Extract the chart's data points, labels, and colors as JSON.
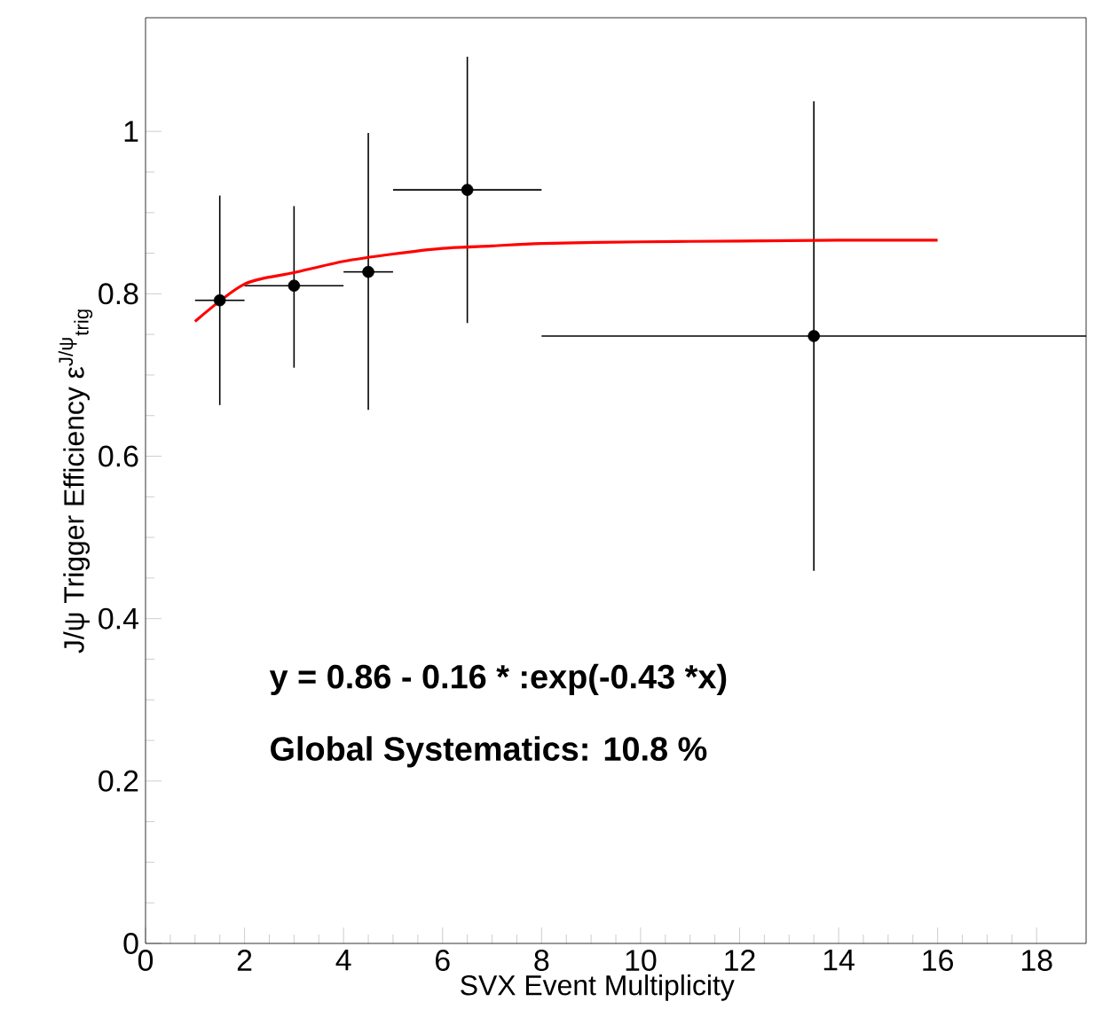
{
  "chart_data": {
    "type": "scatter",
    "xlabel": "SVX Event Multiplicity",
    "ylabel": "J/ψ Trigger Efficiency  ε$^{J/ψ}$$_{trig}$",
    "xlim": [
      0,
      19
    ],
    "xticks": [
      0,
      2,
      4,
      6,
      8,
      10,
      12,
      14,
      16,
      18
    ],
    "ylim": [
      0,
      1.14
    ],
    "yticks": [
      0,
      0.2,
      0.4,
      0.6,
      0.8,
      1
    ],
    "grid": false,
    "annotations": [
      "y = 0.86 - 0.16  * :exp(-0.43  *x)",
      "Global Systematics: 10.8 %"
    ],
    "series": [
      {
        "color": "#000000",
        "marker": "circle",
        "x": [
          1.5,
          3,
          4.5,
          6.5,
          13.5
        ],
        "values": [
          0.792,
          0.81,
          0.827,
          0.928,
          0.748
        ],
        "errors": [
          [
            0.663,
            0.921
          ],
          [
            0.709,
            0.908
          ],
          [
            0.657,
            0.998
          ],
          [
            0.764,
            1.092
          ],
          [
            0.459,
            1.037
          ]
        ],
        "xerrors": [
          [
            1,
            2
          ],
          [
            2,
            4
          ],
          [
            4,
            5
          ],
          [
            5,
            8
          ],
          [
            8,
            19
          ]
        ]
      },
      {
        "type": "line",
        "color": "#ff0000",
        "marker": "none",
        "x": [
          1,
          2,
          3,
          4,
          5,
          6,
          7,
          8,
          10,
          12,
          14,
          16
        ],
        "values": [
          0.766,
          0.812,
          0.826,
          0.84,
          0.849,
          0.856,
          0.859,
          0.862,
          0.864,
          0.865,
          0.866,
          0.866
        ]
      }
    ]
  }
}
